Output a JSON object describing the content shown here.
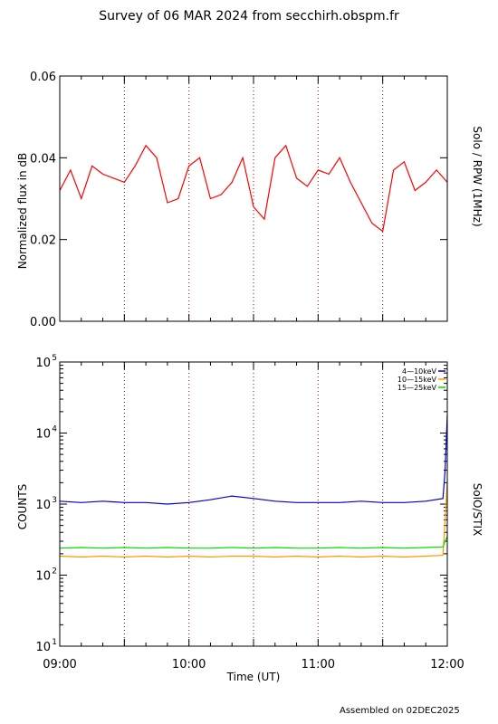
{
  "title": "Survey of 06 MAR 2024 from secchirh.obspm.fr",
  "footer": "Assembled on 02DEC2025",
  "colors": {
    "red": "#ff0000",
    "blue": "#0000cc",
    "orange": "#ff9900",
    "green": "#00dd00",
    "dotted": "#990000"
  },
  "chart_data": [
    {
      "type": "line",
      "instrument": "Solo / RPW (1MHz)",
      "ylabel": "Normalized flux in dB",
      "ylim": [
        0.0,
        0.06
      ],
      "yticks": [
        "0.00",
        "0.02",
        "0.04",
        "0.06"
      ],
      "xlim": [
        "09:00",
        "12:00"
      ],
      "grid": "dotted vertical every 30 min",
      "series": [
        {
          "color": "red",
          "x": [
            "09:00",
            "09:05",
            "09:10",
            "09:15",
            "09:20",
            "09:25",
            "09:30",
            "09:35",
            "09:40",
            "09:45",
            "09:50",
            "09:55",
            "10:00",
            "10:05",
            "10:10",
            "10:15",
            "10:20",
            "10:25",
            "10:30",
            "10:35",
            "10:40",
            "10:45",
            "10:50",
            "10:55",
            "11:00",
            "11:05",
            "11:10",
            "11:15",
            "11:20",
            "11:25",
            "11:30",
            "11:35",
            "11:40",
            "11:45",
            "11:50",
            "11:55",
            "12:00"
          ],
          "values": [
            0.032,
            0.037,
            0.03,
            0.038,
            0.036,
            0.035,
            0.034,
            0.038,
            0.043,
            0.04,
            0.029,
            0.03,
            0.038,
            0.04,
            0.03,
            0.031,
            0.034,
            0.04,
            0.028,
            0.025,
            0.04,
            0.043,
            0.035,
            0.033,
            0.037,
            0.036,
            0.04,
            0.034,
            0.029,
            0.024,
            0.022,
            0.037,
            0.039,
            0.032,
            0.034,
            0.037,
            0.034
          ]
        }
      ]
    },
    {
      "type": "line",
      "instrument": "SolO/STIX",
      "ylabel": "COUNTS",
      "xlabel": "Time (UT)",
      "yscale": "log",
      "ylim": [
        10,
        100000
      ],
      "yticks": [
        "10",
        "10",
        "10",
        "10",
        "10"
      ],
      "yexp": [
        "1",
        "2",
        "3",
        "4",
        "5"
      ],
      "xticks": [
        "09:00",
        "10:00",
        "11:00",
        "12:00"
      ],
      "legend": "top-right",
      "series": [
        {
          "name": "4—10keV",
          "color": "blue",
          "x": [
            "09:00",
            "09:10",
            "09:20",
            "09:30",
            "09:40",
            "09:50",
            "10:00",
            "10:10",
            "10:20",
            "10:30",
            "10:40",
            "10:50",
            "11:00",
            "11:10",
            "11:20",
            "11:30",
            "11:40",
            "11:50",
            "11:58",
            "11:59",
            "12:00"
          ],
          "values": [
            1100,
            1050,
            1100,
            1050,
            1050,
            1000,
            1050,
            1150,
            1300,
            1200,
            1100,
            1050,
            1050,
            1050,
            1100,
            1050,
            1050,
            1100,
            1200,
            3000,
            18000
          ]
        },
        {
          "name": "10—15keV",
          "color": "orange",
          "x": [
            "09:00",
            "09:10",
            "09:20",
            "09:30",
            "09:40",
            "09:50",
            "10:00",
            "10:10",
            "10:20",
            "10:30",
            "10:40",
            "10:50",
            "11:00",
            "11:10",
            "11:20",
            "11:30",
            "11:40",
            "11:50",
            "11:58",
            "11:59",
            "12:00"
          ],
          "values": [
            185,
            180,
            185,
            180,
            185,
            180,
            185,
            180,
            185,
            185,
            180,
            185,
            180,
            185,
            180,
            185,
            180,
            185,
            190,
            600,
            2000
          ]
        },
        {
          "name": "15—25keV",
          "color": "green",
          "x": [
            "09:00",
            "09:10",
            "09:20",
            "09:30",
            "09:40",
            "09:50",
            "10:00",
            "10:10",
            "10:20",
            "10:30",
            "10:40",
            "10:50",
            "11:00",
            "11:10",
            "11:20",
            "11:30",
            "11:40",
            "11:50",
            "11:58",
            "11:59",
            "12:00"
          ],
          "values": [
            240,
            245,
            240,
            245,
            240,
            245,
            240,
            240,
            245,
            240,
            245,
            240,
            240,
            245,
            240,
            245,
            240,
            245,
            250,
            300,
            350
          ]
        }
      ]
    }
  ]
}
